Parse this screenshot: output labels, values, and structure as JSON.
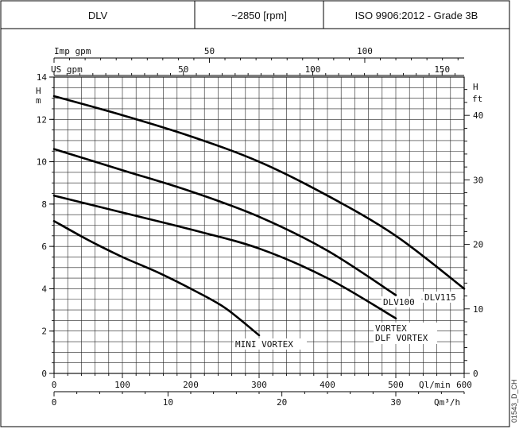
{
  "header": {
    "model": "DLV",
    "speed": "~2850 [rpm]",
    "standard": "ISO 9906:2012 - Grade 3B"
  },
  "document_code": "01543_D_CH",
  "chart_data": {
    "type": "line",
    "x_unit_primary": "Ql/min",
    "xlim": [
      0,
      600
    ],
    "ylim": [
      0,
      14
    ],
    "y_unit_left": "H m",
    "y_unit_right": "H ft",
    "grid": true,
    "x_ticks_lmin": [
      0,
      100,
      200,
      300,
      400,
      500,
      600
    ],
    "x_ticks_m3h": [
      0,
      10,
      20,
      30
    ],
    "x_ticks_usgpm": [
      50,
      100,
      150
    ],
    "x_ticks_impgpm": [
      50,
      100
    ],
    "y_ticks_m": [
      0,
      2,
      4,
      6,
      8,
      10,
      12,
      14
    ],
    "y_ticks_ft": [
      0,
      10,
      20,
      30,
      40
    ],
    "axis_labels": {
      "m3h": "Qm³/h",
      "lmin": "Ql/min",
      "usgpm": "US gpm",
      "impgpm": "Imp gpm",
      "h_left": "H",
      "m_left": "m",
      "h_right": "H",
      "ft_right": "ft"
    },
    "series": [
      {
        "name": "DLV115",
        "x": [
          0,
          100,
          200,
          300,
          400,
          500,
          600
        ],
        "y": [
          13.1,
          12.2,
          11.2,
          10.0,
          8.4,
          6.5,
          4.0
        ]
      },
      {
        "name": "DLV100",
        "x": [
          0,
          100,
          200,
          300,
          400,
          500
        ],
        "y": [
          10.6,
          9.6,
          8.6,
          7.4,
          5.8,
          3.7
        ]
      },
      {
        "name": "VORTEX DLF VORTEX",
        "x": [
          0,
          100,
          200,
          300,
          400,
          500
        ],
        "y": [
          8.4,
          7.6,
          6.8,
          5.9,
          4.5,
          2.6
        ]
      },
      {
        "name": "MINI VORTEX",
        "x": [
          0,
          50,
          100,
          150,
          200,
          250,
          300
        ],
        "y": [
          7.2,
          6.3,
          5.5,
          4.8,
          4.0,
          3.1,
          1.8
        ]
      }
    ],
    "labels": {
      "dlv115": "DLV115",
      "dlv100": "DLV100",
      "vortex": "VORTEX",
      "dlf_vortex": "DLF VORTEX",
      "mini_vortex": "MINI VORTEX"
    }
  }
}
